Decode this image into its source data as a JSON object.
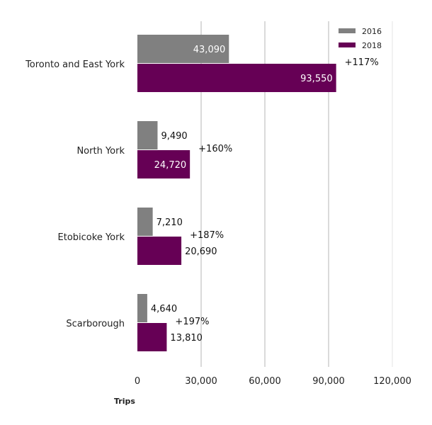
{
  "chart_data": {
    "type": "bar",
    "orientation": "horizontal",
    "categories": [
      "Toronto and East York",
      "North York",
      "Etobicoke York",
      "Scarborough"
    ],
    "series": [
      {
        "name": "2016",
        "values": [
          43090,
          9490,
          7210,
          4640
        ],
        "labels": [
          "43,090",
          "9,490",
          "7,210",
          "4,640"
        ],
        "color": "#808080"
      },
      {
        "name": "2018",
        "values": [
          93550,
          24720,
          20690,
          13810
        ],
        "labels": [
          "93,550",
          "24,720",
          "20,690",
          "13,810"
        ],
        "color": "#660055"
      }
    ],
    "change_labels": [
      "+117%",
      "+160%",
      "+187%",
      "+197%"
    ],
    "xlabel": "Trips",
    "xlim": [
      0,
      120000
    ],
    "xticks": [
      0,
      30000,
      60000,
      90000,
      120000
    ],
    "xtick_labels": [
      "0",
      "30,000",
      "60,000",
      "90,000",
      "120,000"
    ],
    "grid": "vertical",
    "legend_position": "top-right"
  }
}
